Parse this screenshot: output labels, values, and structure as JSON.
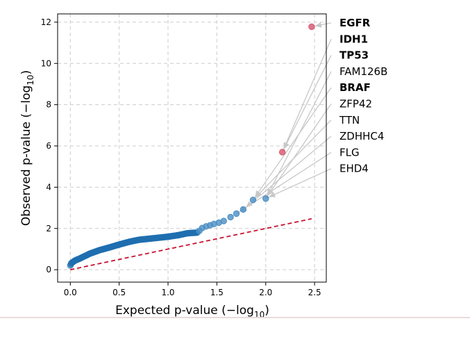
{
  "chart_data": {
    "type": "scatter",
    "title": "",
    "xlabel_main": "Expected p-value (−log",
    "xlabel_sub": "10",
    "xlabel_end": ")",
    "ylabel_main": "Observed p-value (−log",
    "ylabel_sub": "10",
    "ylabel_end": ")",
    "xlim": [
      -0.13,
      2.62
    ],
    "ylim": [
      -0.6,
      12.4
    ],
    "xticks": [
      0.0,
      0.5,
      1.0,
      1.5,
      2.0,
      2.5
    ],
    "xtick_labels": [
      "0.0",
      "0.5",
      "1.0",
      "1.5",
      "2.0",
      "2.5"
    ],
    "yticks": [
      0,
      2,
      4,
      6,
      8,
      10,
      12
    ],
    "ytick_labels": [
      "0",
      "2",
      "4",
      "6",
      "8",
      "10",
      "12"
    ],
    "grid": true,
    "reference_line": {
      "x": [
        0,
        2.47
      ],
      "y": [
        0,
        2.47
      ],
      "color": "#c8102e",
      "style": "dashed"
    },
    "colors": {
      "point": "#1f6fb0",
      "point_alpha": "#4b8fc4",
      "highlight": "#d9546e",
      "grid": "#cccccc",
      "leader": "#c8c8c8"
    },
    "top_points": [
      {
        "x": 2.47,
        "y": 11.78,
        "highlight": true
      },
      {
        "x": 2.17,
        "y": 5.7,
        "highlight": true
      },
      {
        "x": 2.0,
        "y": 3.45,
        "highlight": false
      },
      {
        "x": 1.87,
        "y": 3.38,
        "highlight": false
      },
      {
        "x": 1.77,
        "y": 2.92,
        "highlight": false
      },
      {
        "x": 1.7,
        "y": 2.72,
        "highlight": false
      },
      {
        "x": 1.64,
        "y": 2.55,
        "highlight": false
      },
      {
        "x": 1.57,
        "y": 2.36,
        "highlight": false
      },
      {
        "x": 1.52,
        "y": 2.28,
        "highlight": false
      },
      {
        "x": 1.47,
        "y": 2.22,
        "highlight": false
      },
      {
        "x": 1.43,
        "y": 2.15,
        "highlight": false
      },
      {
        "x": 1.39,
        "y": 2.1,
        "highlight": false
      },
      {
        "x": 1.35,
        "y": 2.02,
        "highlight": false
      },
      {
        "x": 1.32,
        "y": 1.88,
        "highlight": false
      }
    ],
    "bulk_curve": {
      "x_start": 0.0,
      "x_end": 1.3,
      "n": 220,
      "anchors": [
        [
          0.0,
          0.2
        ],
        [
          0.01,
          0.32
        ],
        [
          0.05,
          0.45
        ],
        [
          0.1,
          0.55
        ],
        [
          0.2,
          0.78
        ],
        [
          0.3,
          0.95
        ],
        [
          0.4,
          1.08
        ],
        [
          0.5,
          1.22
        ],
        [
          0.6,
          1.35
        ],
        [
          0.7,
          1.45
        ],
        [
          0.8,
          1.5
        ],
        [
          0.9,
          1.55
        ],
        [
          1.0,
          1.6
        ],
        [
          1.1,
          1.67
        ],
        [
          1.2,
          1.77
        ],
        [
          1.3,
          1.8
        ]
      ]
    },
    "annotations": [
      {
        "label": "EGFR",
        "bold": true,
        "target": [
          2.47,
          11.78
        ]
      },
      {
        "label": "IDH1",
        "bold": true,
        "target": [
          2.17,
          5.7
        ]
      },
      {
        "label": "TP53",
        "bold": true,
        "target": [
          2.17,
          5.7
        ]
      },
      {
        "label": "FAM126B",
        "bold": false,
        "target": [
          2.0,
          3.45
        ]
      },
      {
        "label": "BRAF",
        "bold": true,
        "target": [
          1.87,
          3.38
        ]
      },
      {
        "label": "ZFP42",
        "bold": false,
        "target": [
          2.0,
          3.45
        ]
      },
      {
        "label": "TTN",
        "bold": false,
        "target": [
          1.87,
          3.38
        ]
      },
      {
        "label": "ZDHHC4",
        "bold": false,
        "target": [
          1.77,
          2.92
        ]
      },
      {
        "label": "FLG",
        "bold": false,
        "target": [
          1.7,
          2.72
        ]
      },
      {
        "label": "EHD4",
        "bold": false,
        "target": [
          2.0,
          3.45
        ]
      }
    ]
  }
}
